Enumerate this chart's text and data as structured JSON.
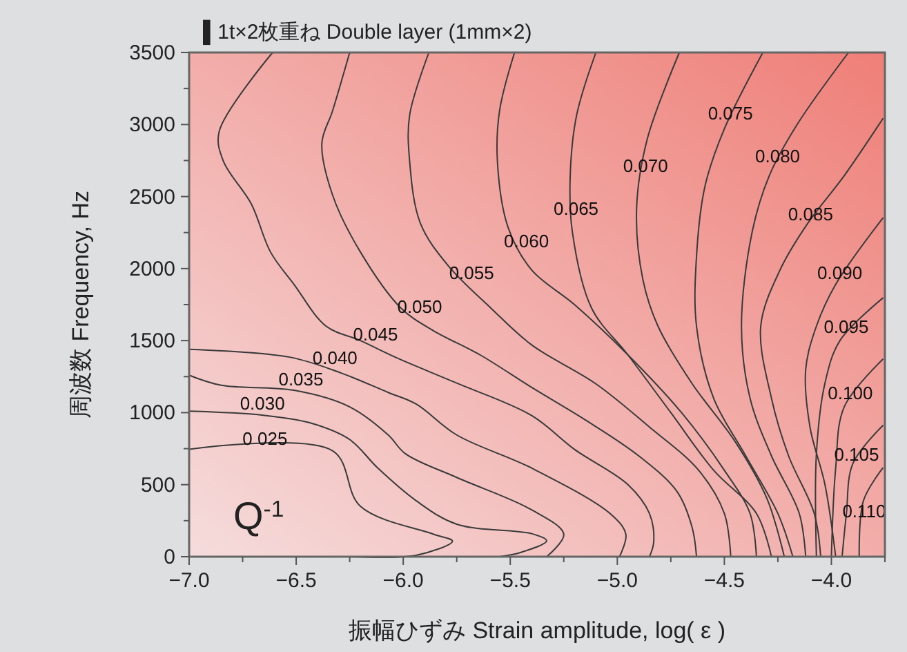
{
  "chart_data": {
    "type": "line",
    "title": "▌1t×2枚重ね  Double layer (1mm×2)",
    "xlabel": "振幅ひずみ Strain amplitude, log( ε )",
    "ylabel": "周波数 Frequency, Hz",
    "annotations": [
      "Q$^{-1}$"
    ],
    "xlim": [
      -7.0,
      -3.75
    ],
    "ylim": [
      0,
      3500
    ],
    "xticks": [
      {
        "value": -7,
        "label": "−7.0"
      },
      {
        "value": -6.75,
        "label": null
      },
      {
        "value": -6.5,
        "label": "−6.5"
      },
      {
        "value": -6.25,
        "label": null
      },
      {
        "value": -6,
        "label": "−6.0"
      },
      {
        "value": -5.75,
        "label": null
      },
      {
        "value": -5.5,
        "label": "−5.5"
      },
      {
        "value": -5.25,
        "label": null
      },
      {
        "value": -5,
        "label": "−5.0"
      },
      {
        "value": -4.75,
        "label": null
      },
      {
        "value": -4.5,
        "label": "−4.5"
      },
      {
        "value": -4.25,
        "label": null
      },
      {
        "value": -4,
        "label": "−4.0"
      },
      {
        "value": -3.75,
        "label": null
      }
    ],
    "yticks": [
      0,
      {
        "value": 250,
        "label": null
      },
      500,
      {
        "value": 750,
        "label": null
      },
      1000,
      {
        "value": 1250,
        "label": null
      },
      1500,
      {
        "value": 1750,
        "label": null
      },
      2000,
      {
        "value": 2250,
        "label": null
      },
      2500,
      {
        "value": 2750,
        "label": null
      },
      3000,
      {
        "value": 3250,
        "label": null
      },
      3500
    ],
    "marker": "none",
    "line_style": "solid",
    "series": [
      {
        "name": "0 025",
        "color": "#3a3a3a",
        "x": [
          -7.0,
          -6.33,
          -6.2,
          -5.86,
          -5.77,
          -5.94,
          -6.25
        ],
        "values": [
          745,
          735,
          350,
          157,
          108,
          10,
          0
        ]
      },
      {
        "name": "0.030",
        "color": "#3a3a3a",
        "x": [
          -7.0,
          -6.66,
          -6.44,
          -6.25,
          -6.12,
          -5.94,
          -5.75,
          -5.4,
          -5.33,
          -5.45,
          -5.55
        ],
        "values": [
          1010,
          983,
          931,
          813,
          617,
          389,
          225,
          160,
          110,
          30,
          0
        ]
      },
      {
        "name": "0.035",
        "color": "#3a3a3a",
        "x": [
          -7.0,
          -6.85,
          -6.51,
          -6.25,
          -6.07,
          -5.99,
          -5.75,
          -5.4,
          -5.25,
          -5.33
        ],
        "values": [
          1260,
          1190,
          1155,
          1040,
          845,
          715,
          550,
          325,
          155,
          0
        ]
      },
      {
        "name": "0.040",
        "color": "#3a3a3a",
        "x": [
          -7.0,
          -6.53,
          -6.29,
          -6.07,
          -5.94,
          -5.75,
          -5.4,
          -5.03,
          -4.96,
          -4.99
        ],
        "values": [
          1440,
          1385,
          1275,
          1140,
          1060,
          845,
          615,
          295,
          155,
          0
        ]
      },
      {
        "name": "0.045",
        "color": "#3a3a3a",
        "x": [
          -6.61,
          -6.86,
          -6.84,
          -6.71,
          -6.62,
          -6.51,
          -6.36,
          -6.2,
          -6.03,
          -5.75,
          -5.4,
          -5.2,
          -4.95,
          -4.85,
          -4.83,
          -4.85
        ],
        "values": [
          3500,
          2950,
          2745,
          2450,
          2115,
          1890,
          1600,
          1500,
          1380,
          1205,
          980,
          745,
          500,
          300,
          100,
          0
        ]
      },
      {
        "name": "0.050",
        "color": "#3a3a3a",
        "x": [
          -6.25,
          -6.33,
          -6.38,
          -6.33,
          -6.2,
          -6.01,
          -5.86,
          -5.64,
          -5.4,
          -5.15,
          -4.9,
          -4.72,
          -4.65,
          -4.63
        ],
        "values": [
          3500,
          3095,
          2870,
          2510,
          2115,
          1725,
          1570,
          1400,
          1175,
          950,
          700,
          450,
          200,
          0
        ]
      },
      {
        "name": "0.055",
        "color": "#3a3a3a",
        "x": [
          -5.88,
          -5.97,
          -5.97,
          -5.92,
          -5.79,
          -5.59,
          -5.4,
          -5.1,
          -4.85,
          -4.62,
          -4.5,
          -4.47
        ],
        "values": [
          3500,
          3065,
          2745,
          2315,
          2020,
          1725,
          1470,
          1200,
          900,
          600,
          300,
          0
        ]
      },
      {
        "name": "0.060",
        "color": "#3a3a3a",
        "x": [
          -5.48,
          -5.55,
          -5.56,
          -5.51,
          -5.4,
          -5.2,
          -4.95,
          -4.7,
          -4.5,
          -4.38,
          -4.35
        ],
        "values": [
          3500,
          3095,
          2745,
          2285,
          1990,
          1750,
          1400,
          1000,
          600,
          300,
          0
        ]
      },
      {
        "name": "0.065",
        "color": "#3a3a3a",
        "x": [
          -5.1,
          -5.19,
          -5.22,
          -5.21,
          -5.12,
          -4.95,
          -4.75,
          -4.55,
          -4.35,
          -4.28
        ],
        "values": [
          3500,
          3065,
          2645,
          2255,
          1725,
          1400,
          1000,
          600,
          300,
          0
        ]
      },
      {
        "name": "0.070",
        "color": "#3a3a3a",
        "x": [
          -4.71,
          -4.86,
          -4.91,
          -4.88,
          -4.81,
          -4.65,
          -4.45,
          -4.3,
          -4.22
        ],
        "values": [
          3500,
          2900,
          2410,
          1920,
          1600,
          1200,
          800,
          400,
          0
        ]
      },
      {
        "name": "0.075",
        "color": "#3a3a3a",
        "x": [
          -4.32,
          -4.5,
          -4.59,
          -4.63,
          -4.63,
          -4.55,
          -4.4,
          -4.25,
          -4.18
        ],
        "values": [
          3500,
          2970,
          2575,
          2085,
          1600,
          1100,
          700,
          300,
          0
        ]
      },
      {
        "name": "0.080",
        "color": "#3a3a3a",
        "x": [
          -3.92,
          -4.16,
          -4.29,
          -4.37,
          -4.42,
          -4.38,
          -4.28,
          -4.15,
          -4.12
        ],
        "values": [
          3500,
          3000,
          2645,
          2255,
          1600,
          1100,
          700,
          300,
          0
        ]
      },
      {
        "name": "0.085",
        "color": "#3a3a3a",
        "x": [
          -3.76,
          -3.94,
          -4.11,
          -4.24,
          -4.33,
          -4.28,
          -4.2,
          -4.08,
          -4.05
        ],
        "values": [
          3040,
          2645,
          2315,
          1990,
          1600,
          1100,
          700,
          300,
          0
        ]
      },
      {
        "name": "0.090",
        "color": "#3a3a3a",
        "x": [
          -3.76,
          -3.98,
          -4.07,
          -4.12,
          -4.1,
          -4.03,
          -3.98
        ],
        "values": [
          2350,
          1890,
          1600,
          1300,
          900,
          500,
          0
        ]
      },
      {
        "name": "0.095",
        "color": "#3a3a3a",
        "x": [
          -3.76,
          -3.96,
          -4.03,
          -4.07,
          -4.07
        ],
        "values": [
          1795,
          1500,
          1205,
          715,
          0
        ]
      },
      {
        "name": "0.100",
        "color": "#3a3a3a",
        "x": [
          -3.76,
          -3.94,
          -3.98,
          -4.0
        ],
        "values": [
          1370,
          1040,
          615,
          0
        ]
      },
      {
        "name": "0.105",
        "color": "#3a3a3a",
        "x": [
          -3.76,
          -3.9,
          -3.93,
          -3.95
        ],
        "values": [
          910,
          645,
          295,
          0
        ]
      },
      {
        "name": "0.110",
        "color": "#3a3a3a",
        "x": [
          -3.76,
          -3.85,
          -3.87
        ],
        "values": [
          615,
          390,
          0
        ]
      }
    ]
  }
}
